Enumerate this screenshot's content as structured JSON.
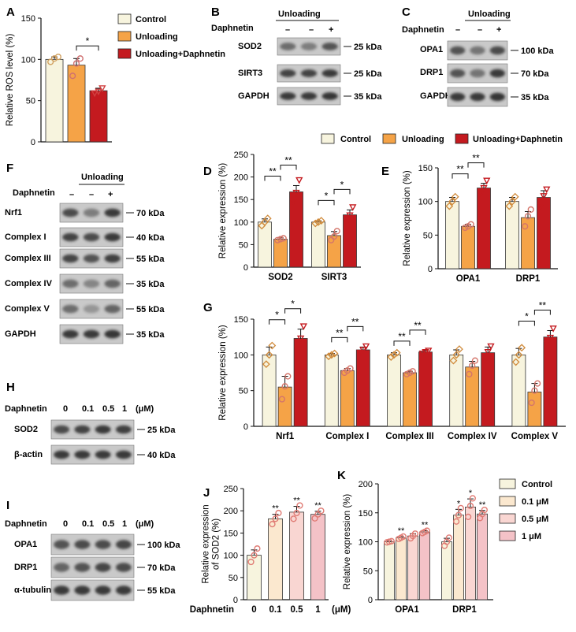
{
  "colors": {
    "control": "#f7f4de",
    "unloading": "#f5a347",
    "daph": "#c41a1f",
    "c0": "#f7f4de",
    "c01": "#fbe8cf",
    "c05": "#f9d6d2",
    "c1": "#f4c2c7",
    "dot": "#e07b74",
    "ink": "#111111",
    "band_dark": "#2a2a2a"
  },
  "labels": {
    "A": "A",
    "B": "B",
    "C": "C",
    "D": "D",
    "E": "E",
    "F": "F",
    "G": "G",
    "H": "H",
    "I": "I",
    "J": "J",
    "K": "K",
    "unloading": "Unloading",
    "daphnetin": "Daphnetin",
    "minus": "–",
    "plus": "+",
    "legend_control": "Control",
    "legend_unloading": "Unloading",
    "legend_daph": "Unloading+Daphnetin",
    "kda25": "25 kDa",
    "kda35": "35 kDa",
    "kda40": "40 kDa",
    "kda55": "55 kDa",
    "kda70": "70 kDa",
    "kda100": "100 kDa",
    "sod2": "SOD2",
    "sirt3": "SIRT3",
    "gapdh": "GAPDH",
    "opa1": "OPA1",
    "drp1": "DRP1",
    "nrf1": "Nrf1",
    "complex1": "Complex I",
    "complex3": "Complex III",
    "complex4": "Complex IV",
    "complex5": "Complex V",
    "bactin": "β-actin",
    "atub": "α-tubulin",
    "dose0": "0",
    "dose01": "0.1",
    "dose05": "0.5",
    "dose1": "1",
    "um": "(μM)",
    "k_leg0": "Control",
    "k_leg01": "0.1 μM",
    "k_leg05": "0.5 μM",
    "k_leg1": "1 μM"
  },
  "chart_data": [
    {
      "panel": "A",
      "type": "bar",
      "ylabel": "Relative ROS level (%)",
      "ylim": [
        0,
        150
      ],
      "yticks": [
        0,
        50,
        100,
        150
      ],
      "groups": [
        {
          "category": "",
          "bars": [
            {
              "series": "Control",
              "value": 100,
              "err": 3,
              "points": [
                97,
                101,
                103
              ]
            },
            {
              "series": "Unloading",
              "value": 93,
              "err": 8,
              "points": [
                80,
                95,
                101
              ]
            },
            {
              "series": "Unloading+Daphnetin",
              "value": 62,
              "err": 3,
              "points": [
                59,
                61,
                65
              ]
            }
          ]
        }
      ],
      "annotations": [
        {
          "text": "*",
          "between": [
            "Unloading",
            "Unloading+Daphnetin"
          ]
        }
      ]
    },
    {
      "panel": "D",
      "type": "bar",
      "ylabel": "Relative expression (%)",
      "ylim": [
        0,
        250
      ],
      "yticks": [
        0,
        50,
        100,
        150,
        200,
        250
      ],
      "groups": [
        {
          "category": "SOD2",
          "bars": [
            {
              "series": "Control",
              "value": 100,
              "err": 7,
              "points": [
                92,
                100,
                108
              ]
            },
            {
              "series": "Unloading",
              "value": 62,
              "err": 3,
              "points": [
                60,
                62,
                64
              ]
            },
            {
              "series": "Unloading+Daphnetin",
              "value": 167,
              "err": 14,
              "points": [
                145,
                165,
                193
              ]
            }
          ],
          "annotations": [
            "**",
            "**"
          ]
        },
        {
          "category": "SIRT3",
          "bars": [
            {
              "series": "Control",
              "value": 100,
              "err": 3,
              "points": [
                97,
                100,
                103
              ]
            },
            {
              "series": "Unloading",
              "value": 70,
              "err": 9,
              "points": [
                60,
                68,
                80
              ]
            },
            {
              "series": "Unloading+Daphnetin",
              "value": 116,
              "err": 11,
              "points": [
                100,
                115,
                133
              ]
            }
          ],
          "annotations": [
            "*",
            "*"
          ]
        }
      ]
    },
    {
      "panel": "E",
      "type": "bar",
      "ylabel": "Relative expression (%)",
      "ylim": [
        0,
        150
      ],
      "yticks": [
        0,
        50,
        100,
        150
      ],
      "groups": [
        {
          "category": "OPA1",
          "bars": [
            {
              "series": "Control",
              "value": 100,
              "err": 6,
              "points": [
                93,
                100,
                107
              ]
            },
            {
              "series": "Unloading",
              "value": 63,
              "err": 3,
              "points": [
                61,
                63,
                66
              ]
            },
            {
              "series": "Unloading+Daphnetin",
              "value": 120,
              "err": 7,
              "points": [
                112,
                120,
                131
              ]
            }
          ],
          "annotations": [
            "**",
            "**"
          ]
        },
        {
          "category": "DRP1",
          "bars": [
            {
              "series": "Control",
              "value": 100,
              "err": 6,
              "points": [
                93,
                100,
                107
              ]
            },
            {
              "series": "Unloading",
              "value": 76,
              "err": 9,
              "points": [
                63,
                78,
                88
              ]
            },
            {
              "series": "Unloading+Daphnetin",
              "value": 106,
              "err": 10,
              "points": [
                93,
                108,
                118
              ]
            }
          ],
          "annotations": []
        }
      ]
    },
    {
      "panel": "G",
      "type": "bar",
      "ylabel": "Relative expression (%)",
      "ylim": [
        0,
        150
      ],
      "yticks": [
        0,
        50,
        100,
        150
      ],
      "groups": [
        {
          "category": "Nrf1",
          "bars": [
            {
              "series": "Control",
              "value": 100,
              "err": 11,
              "points": [
                87,
                100,
                113
              ]
            },
            {
              "series": "Unloading",
              "value": 55,
              "err": 15,
              "points": [
                38,
                56,
                70
              ]
            },
            {
              "series": "Unloading+Daphnetin",
              "value": 123,
              "err": 13,
              "points": [
                108,
                123,
                140
              ]
            }
          ],
          "annotations": [
            "*",
            "*"
          ]
        },
        {
          "category": "Complex I",
          "bars": [
            {
              "series": "Control",
              "value": 100,
              "err": 2,
              "points": [
                98,
                100,
                102
              ]
            },
            {
              "series": "Unloading",
              "value": 78,
              "err": 3,
              "points": [
                75,
                78,
                81
              ]
            },
            {
              "series": "Unloading+Daphnetin",
              "value": 107,
              "err": 4,
              "points": [
                103,
                107,
                112
              ]
            }
          ],
          "annotations": [
            "**",
            "**"
          ]
        },
        {
          "category": "Complex III",
          "bars": [
            {
              "series": "Control",
              "value": 100,
              "err": 3,
              "points": [
                97,
                100,
                103
              ]
            },
            {
              "series": "Unloading",
              "value": 75,
              "err": 2,
              "points": [
                73,
                75,
                77
              ]
            },
            {
              "series": "Unloading+Daphnetin",
              "value": 104,
              "err": 2,
              "points": [
                102,
                104,
                106
              ]
            }
          ],
          "annotations": [
            "**",
            "**"
          ]
        },
        {
          "category": "Complex IV",
          "bars": [
            {
              "series": "Control",
              "value": 100,
              "err": 7,
              "points": [
                92,
                100,
                108
              ]
            },
            {
              "series": "Unloading",
              "value": 83,
              "err": 8,
              "points": [
                73,
                85,
                92
              ]
            },
            {
              "series": "Unloading+Daphnetin",
              "value": 103,
              "err": 8,
              "points": [
                93,
                104,
                112
              ]
            }
          ],
          "annotations": []
        },
        {
          "category": "Complex V",
          "bars": [
            {
              "series": "Control",
              "value": 100,
              "err": 9,
              "points": [
                90,
                100,
                110
              ]
            },
            {
              "series": "Unloading",
              "value": 48,
              "err": 12,
              "points": [
                33,
                50,
                60
              ]
            },
            {
              "series": "Unloading+Daphnetin",
              "value": 125,
              "err": 9,
              "points": [
                115,
                124,
                137
              ]
            }
          ],
          "annotations": [
            "*",
            "**"
          ]
        }
      ]
    },
    {
      "panel": "J",
      "type": "bar",
      "ylabel": "Relative expression\nof SOD2 (%)",
      "ylim": [
        0,
        250
      ],
      "yticks": [
        0,
        50,
        100,
        150,
        200,
        250
      ],
      "xlabel": "Daphnetin",
      "xunit": "(μM)",
      "categories": [
        "0",
        "0.1",
        "0.5",
        "1"
      ],
      "values": [
        100,
        182,
        197,
        192
      ],
      "errs": [
        12,
        10,
        13,
        7
      ],
      "points": [
        [
          85,
          100,
          115
        ],
        [
          170,
          182,
          195
        ],
        [
          182,
          195,
          212
        ],
        [
          183,
          192,
          200
        ]
      ],
      "annotations": [
        "",
        "**",
        "**",
        "**"
      ]
    },
    {
      "panel": "K",
      "type": "bar",
      "ylabel": "Relative expression (%)",
      "ylim": [
        0,
        200
      ],
      "yticks": [
        0,
        50,
        100,
        150,
        200
      ],
      "groups": [
        {
          "category": "OPA1",
          "bars": [
            {
              "series": "Control",
              "value": 100,
              "err": 1,
              "points": [
                99,
                100,
                101
              ]
            },
            {
              "series": "0.1 μM",
              "value": 107,
              "err": 2,
              "points": [
                105,
                107,
                109
              ]
            },
            {
              "series": "0.5 μM",
              "value": 110,
              "err": 4,
              "points": [
                106,
                110,
                114
              ]
            },
            {
              "series": "1 μM",
              "value": 117,
              "err": 2,
              "points": [
                115,
                117,
                119
              ]
            }
          ],
          "annotations": [
            "",
            "**",
            "",
            "**"
          ]
        },
        {
          "category": "DRP1",
          "bars": [
            {
              "series": "Control",
              "value": 100,
              "err": 6,
              "points": [
                93,
                100,
                107
              ]
            },
            {
              "series": "0.1 μM",
              "value": 146,
              "err": 10,
              "points": [
                135,
                146,
                158
              ]
            },
            {
              "series": "0.5 μM",
              "value": 160,
              "err": 14,
              "points": [
                143,
                162,
                175
              ]
            },
            {
              "series": "1 μM",
              "value": 148,
              "err": 6,
              "points": [
                141,
                148,
                155
              ]
            }
          ],
          "annotations": [
            "",
            "*",
            "*",
            "**"
          ]
        }
      ]
    }
  ]
}
